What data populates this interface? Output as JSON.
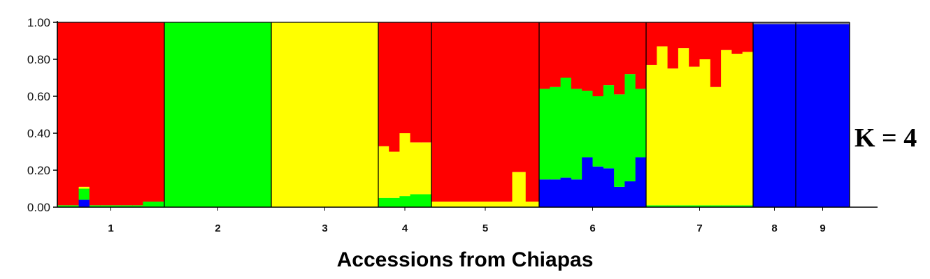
{
  "chart_data": {
    "type": "bar",
    "stacked": true,
    "annotation": "K = 4",
    "xlabel": "Accessions from Chiapas",
    "ylabel": "",
    "ylim": [
      0,
      1
    ],
    "yticks": [
      "0.00",
      "0.20",
      "0.40",
      "0.60",
      "0.80",
      "1.00"
    ],
    "grid": false,
    "cluster_order": [
      "blue",
      "green",
      "yellow",
      "red"
    ],
    "colors": {
      "red": "#ff0000",
      "green": "#00ff00",
      "yellow": "#ffff00",
      "blue": "#0000ff"
    },
    "groups": [
      {
        "label": "1",
        "individuals": [
          {
            "blue": 0.0,
            "green": 0.01,
            "yellow": 0.0,
            "red": 0.99
          },
          {
            "blue": 0.0,
            "green": 0.01,
            "yellow": 0.0,
            "red": 0.99
          },
          {
            "blue": 0.04,
            "green": 0.06,
            "yellow": 0.01,
            "red": 0.89
          },
          {
            "blue": 0.0,
            "green": 0.01,
            "yellow": 0.0,
            "red": 0.99
          },
          {
            "blue": 0.0,
            "green": 0.01,
            "yellow": 0.0,
            "red": 0.99
          },
          {
            "blue": 0.0,
            "green": 0.01,
            "yellow": 0.0,
            "red": 0.99
          },
          {
            "blue": 0.0,
            "green": 0.01,
            "yellow": 0.0,
            "red": 0.99
          },
          {
            "blue": 0.0,
            "green": 0.01,
            "yellow": 0.0,
            "red": 0.99
          },
          {
            "blue": 0.0,
            "green": 0.03,
            "yellow": 0.0,
            "red": 0.97
          },
          {
            "blue": 0.0,
            "green": 0.03,
            "yellow": 0.0,
            "red": 0.97
          }
        ]
      },
      {
        "label": "2",
        "individuals": [
          {
            "blue": 0,
            "green": 1.0,
            "yellow": 0,
            "red": 0
          },
          {
            "blue": 0,
            "green": 1.0,
            "yellow": 0,
            "red": 0
          },
          {
            "blue": 0,
            "green": 1.0,
            "yellow": 0,
            "red": 0
          }
        ]
      },
      {
        "label": "3",
        "individuals": [
          {
            "blue": 0,
            "green": 0,
            "yellow": 1.0,
            "red": 0
          },
          {
            "blue": 0,
            "green": 0,
            "yellow": 1.0,
            "red": 0
          },
          {
            "blue": 0,
            "green": 0,
            "yellow": 1.0,
            "red": 0
          }
        ]
      },
      {
        "label": "4",
        "individuals": [
          {
            "blue": 0,
            "green": 0.05,
            "yellow": 0.28,
            "red": 0.67
          },
          {
            "blue": 0,
            "green": 0.05,
            "yellow": 0.25,
            "red": 0.7
          },
          {
            "blue": 0,
            "green": 0.06,
            "yellow": 0.34,
            "red": 0.6
          },
          {
            "blue": 0,
            "green": 0.07,
            "yellow": 0.28,
            "red": 0.65
          },
          {
            "blue": 0,
            "green": 0.07,
            "yellow": 0.28,
            "red": 0.65
          }
        ]
      },
      {
        "label": "5",
        "individuals": [
          {
            "blue": 0,
            "green": 0,
            "yellow": 0.03,
            "red": 0.97
          },
          {
            "blue": 0,
            "green": 0,
            "yellow": 0.03,
            "red": 0.97
          },
          {
            "blue": 0,
            "green": 0,
            "yellow": 0.03,
            "red": 0.97
          },
          {
            "blue": 0,
            "green": 0,
            "yellow": 0.03,
            "red": 0.97
          },
          {
            "blue": 0,
            "green": 0,
            "yellow": 0.03,
            "red": 0.97
          },
          {
            "blue": 0,
            "green": 0,
            "yellow": 0.03,
            "red": 0.97
          },
          {
            "blue": 0,
            "green": 0,
            "yellow": 0.19,
            "red": 0.81
          },
          {
            "blue": 0,
            "green": 0,
            "yellow": 0.03,
            "red": 0.97
          }
        ]
      },
      {
        "label": "6",
        "individuals": [
          {
            "blue": 0.15,
            "green": 0.49,
            "yellow": 0,
            "red": 0.36
          },
          {
            "blue": 0.15,
            "green": 0.5,
            "yellow": 0,
            "red": 0.35
          },
          {
            "blue": 0.16,
            "green": 0.54,
            "yellow": 0,
            "red": 0.3
          },
          {
            "blue": 0.15,
            "green": 0.49,
            "yellow": 0,
            "red": 0.36
          },
          {
            "blue": 0.27,
            "green": 0.36,
            "yellow": 0,
            "red": 0.37
          },
          {
            "blue": 0.22,
            "green": 0.38,
            "yellow": 0,
            "red": 0.4
          },
          {
            "blue": 0.21,
            "green": 0.45,
            "yellow": 0,
            "red": 0.34
          },
          {
            "blue": 0.11,
            "green": 0.5,
            "yellow": 0,
            "red": 0.39
          },
          {
            "blue": 0.14,
            "green": 0.58,
            "yellow": 0,
            "red": 0.28
          },
          {
            "blue": 0.27,
            "green": 0.37,
            "yellow": 0,
            "red": 0.36
          }
        ]
      },
      {
        "label": "7",
        "individuals": [
          {
            "blue": 0,
            "green": 0.01,
            "yellow": 0.76,
            "red": 0.23
          },
          {
            "blue": 0,
            "green": 0.01,
            "yellow": 0.86,
            "red": 0.13
          },
          {
            "blue": 0,
            "green": 0.01,
            "yellow": 0.74,
            "red": 0.25
          },
          {
            "blue": 0,
            "green": 0.01,
            "yellow": 0.85,
            "red": 0.14
          },
          {
            "blue": 0,
            "green": 0.01,
            "yellow": 0.75,
            "red": 0.24
          },
          {
            "blue": 0,
            "green": 0.01,
            "yellow": 0.79,
            "red": 0.2
          },
          {
            "blue": 0,
            "green": 0.01,
            "yellow": 0.64,
            "red": 0.35
          },
          {
            "blue": 0,
            "green": 0.01,
            "yellow": 0.84,
            "red": 0.15
          },
          {
            "blue": 0,
            "green": 0.01,
            "yellow": 0.82,
            "red": 0.17
          },
          {
            "blue": 0,
            "green": 0.01,
            "yellow": 0.83,
            "red": 0.16
          }
        ]
      },
      {
        "label": "8",
        "individuals": [
          {
            "blue": 0.99,
            "green": 0,
            "yellow": 0,
            "red": 0
          }
        ]
      },
      {
        "label": "9",
        "individuals": [
          {
            "blue": 0.99,
            "green": 0,
            "yellow": 0,
            "red": 0
          }
        ]
      }
    ]
  }
}
